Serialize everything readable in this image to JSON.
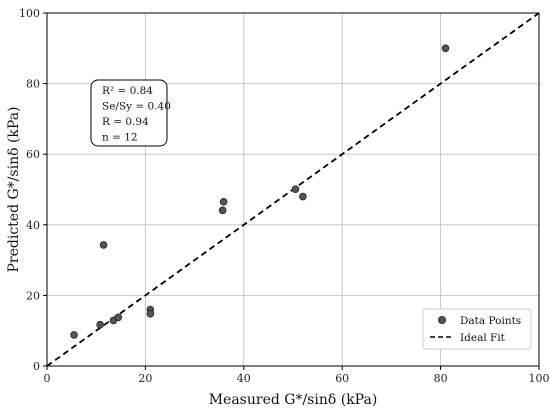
{
  "chart_data": {
    "type": "scatter",
    "xlabel": "Measured G*/sinδ (kPa)",
    "ylabel": "Predicted G*/sinδ (kPa)",
    "xlim": [
      0,
      100
    ],
    "ylim": [
      0,
      100
    ],
    "xticks": [
      0,
      20,
      40,
      60,
      80,
      100
    ],
    "yticks": [
      0,
      20,
      40,
      60,
      80,
      100
    ],
    "grid": true,
    "legend_position": "bottom-right",
    "series": [
      {
        "name": "Data Points",
        "type": "scatter",
        "color": "#555555",
        "x": [
          5.5,
          10.8,
          11.5,
          13.5,
          14.5,
          21.0,
          21.0,
          35.7,
          35.9,
          50.5,
          52.0,
          81.0
        ],
        "y": [
          8.8,
          11.7,
          34.3,
          12.9,
          13.8,
          16.0,
          14.8,
          44.1,
          46.5,
          50.1,
          48.0,
          90.0
        ]
      },
      {
        "name": "Ideal Fit",
        "type": "line",
        "style": "dashed",
        "color": "#000000",
        "x": [
          0,
          100
        ],
        "y": [
          0,
          100
        ]
      }
    ],
    "annotation": {
      "lines": [
        "R² = 0.84",
        "Se/Sy = 0.40",
        "R = 0.94",
        "n = 12"
      ]
    }
  }
}
